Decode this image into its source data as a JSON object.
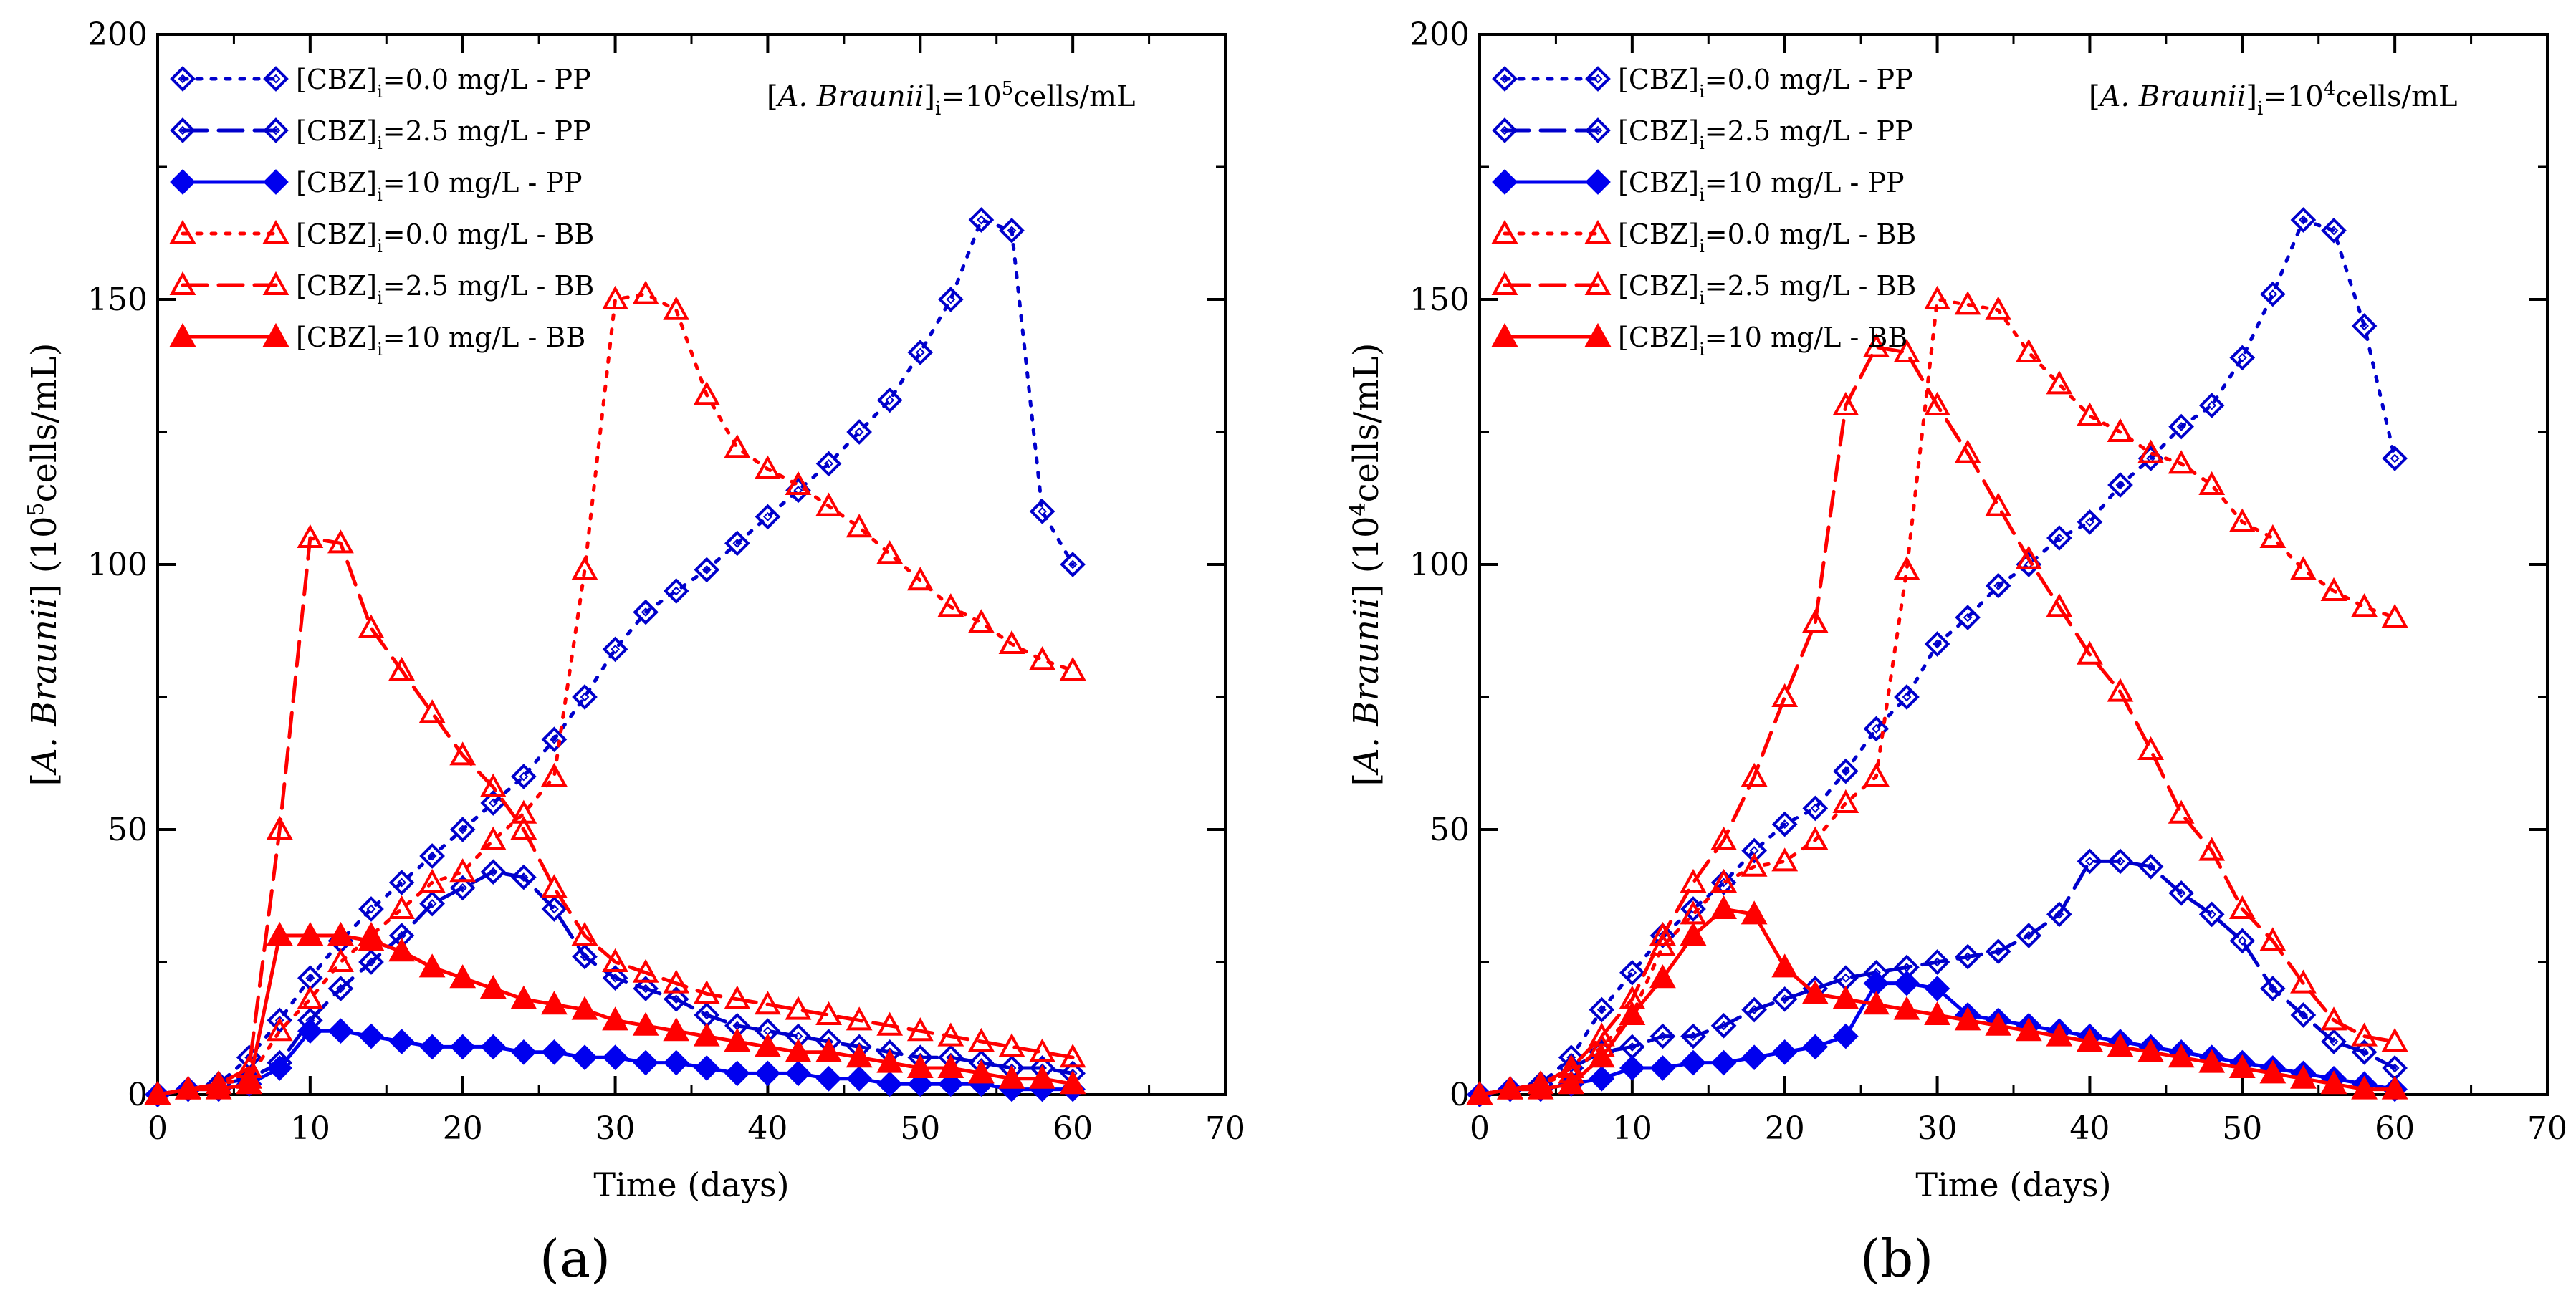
{
  "panel_labels": [
    "(a)",
    "(b)"
  ],
  "chart_data": [
    {
      "type": "line",
      "panel": "(a)",
      "xlabel": "Time (days)",
      "ylabel_prefix": "[",
      "ylabel_italic": "A. Braunii",
      "ylabel_mid": "] (10",
      "ylabel_sup": "5",
      "ylabel_suffix": "cells/mL)",
      "annotation": {
        "prefix": "[",
        "italic": "A. Braunii",
        "mid": "]",
        "sub": "i",
        "eq": "=10",
        "sup": "5",
        "suffix": "cells/mL"
      },
      "xlim": [
        0,
        70
      ],
      "ylim": [
        0,
        200
      ],
      "xticks": [
        0,
        10,
        20,
        30,
        40,
        50,
        60,
        70
      ],
      "yticks": [
        0,
        50,
        100,
        150,
        200
      ],
      "series": [
        {
          "name_pre": "[CBZ]",
          "name_sub": "i",
          "name_post": "=0.0 mg/L - PP",
          "color": "#0000cc",
          "dash": "dot",
          "marker": "diamond",
          "filled": false,
          "x": [
            0,
            2,
            4,
            6,
            8,
            10,
            12,
            14,
            16,
            18,
            20,
            22,
            24,
            26,
            28,
            30,
            32,
            34,
            36,
            38,
            40,
            42,
            44,
            46,
            48,
            50,
            52,
            54,
            56,
            58,
            60
          ],
          "y": [
            0,
            1,
            2,
            7,
            14,
            22,
            29,
            35,
            40,
            45,
            50,
            55,
            60,
            67,
            75,
            84,
            91,
            95,
            99,
            104,
            109,
            114,
            119,
            125,
            131,
            140,
            150,
            165,
            163,
            110,
            100
          ]
        },
        {
          "name_pre": "[CBZ]",
          "name_sub": "i",
          "name_post": "=2.5 mg/L - PP",
          "color": "#0000cc",
          "dash": "dash",
          "marker": "diamond",
          "filled": false,
          "x": [
            0,
            2,
            4,
            6,
            8,
            10,
            12,
            14,
            16,
            18,
            20,
            22,
            24,
            26,
            28,
            30,
            32,
            34,
            36,
            38,
            40,
            42,
            44,
            46,
            48,
            50,
            52,
            54,
            56,
            58,
            60
          ],
          "y": [
            0,
            1,
            2,
            3,
            6,
            14,
            20,
            25,
            30,
            36,
            39,
            42,
            41,
            35,
            26,
            22,
            20,
            18,
            15,
            13,
            12,
            11,
            10,
            9,
            8,
            7,
            7,
            6,
            5,
            5,
            4
          ]
        },
        {
          "name_pre": "[CBZ]",
          "name_sub": "i",
          "name_post": "=10 mg/L - PP",
          "color": "#0000ee",
          "dash": "solid",
          "marker": "diamond",
          "filled": true,
          "x": [
            0,
            2,
            4,
            6,
            8,
            10,
            12,
            14,
            16,
            18,
            20,
            22,
            24,
            26,
            28,
            30,
            32,
            34,
            36,
            38,
            40,
            42,
            44,
            46,
            48,
            50,
            52,
            54,
            56,
            58,
            60
          ],
          "y": [
            0,
            1,
            1,
            2,
            5,
            12,
            12,
            11,
            10,
            9,
            9,
            9,
            8,
            8,
            7,
            7,
            6,
            6,
            5,
            4,
            4,
            4,
            3,
            3,
            2,
            2,
            2,
            2,
            1,
            1,
            1
          ]
        },
        {
          "name_pre": "[CBZ]",
          "name_sub": "i",
          "name_post": "=0.0 mg/L - BB",
          "color": "#ff0000",
          "dash": "dot",
          "marker": "triangle",
          "filled": false,
          "x": [
            0,
            2,
            4,
            6,
            8,
            10,
            12,
            14,
            16,
            18,
            20,
            22,
            24,
            26,
            28,
            30,
            32,
            34,
            36,
            38,
            40,
            42,
            44,
            46,
            48,
            50,
            52,
            54,
            56,
            58,
            60
          ],
          "y": [
            0,
            1,
            2,
            3,
            12,
            18,
            25,
            30,
            35,
            40,
            42,
            48,
            53,
            60,
            99,
            150,
            151,
            148,
            132,
            122,
            118,
            115,
            111,
            107,
            102,
            97,
            92,
            89,
            85,
            82,
            80
          ]
        },
        {
          "name_pre": "[CBZ]",
          "name_sub": "i",
          "name_post": "=2.5 mg/L - BB",
          "color": "#ff0000",
          "dash": "dash",
          "marker": "triangle",
          "filled": false,
          "x": [
            0,
            2,
            4,
            6,
            8,
            10,
            12,
            14,
            16,
            18,
            20,
            22,
            24,
            26,
            28,
            30,
            32,
            34,
            36,
            38,
            40,
            42,
            44,
            46,
            48,
            50,
            52,
            54,
            56,
            58,
            60
          ],
          "y": [
            0,
            1,
            2,
            5,
            50,
            105,
            104,
            88,
            80,
            72,
            64,
            58,
            50,
            39,
            30,
            25,
            23,
            21,
            19,
            18,
            17,
            16,
            15,
            14,
            13,
            12,
            11,
            10,
            9,
            8,
            7
          ]
        },
        {
          "name_pre": "[CBZ]",
          "name_sub": "i",
          "name_post": "=10 mg/L - BB",
          "color": "#ff0000",
          "dash": "solid",
          "marker": "triangle",
          "filled": true,
          "x": [
            0,
            2,
            4,
            6,
            8,
            10,
            12,
            14,
            16,
            18,
            20,
            22,
            24,
            26,
            28,
            30,
            32,
            34,
            36,
            38,
            40,
            42,
            44,
            46,
            48,
            50,
            52,
            54,
            56,
            58,
            60
          ],
          "y": [
            0,
            1,
            1,
            2,
            30,
            30,
            30,
            29,
            27,
            24,
            22,
            20,
            18,
            17,
            16,
            14,
            13,
            12,
            11,
            10,
            9,
            8,
            8,
            7,
            6,
            5,
            5,
            4,
            3,
            3,
            2
          ]
        }
      ]
    },
    {
      "type": "line",
      "panel": "(b)",
      "xlabel": "Time (days)",
      "ylabel_prefix": "[",
      "ylabel_italic": "A. Braunii",
      "ylabel_mid": "] (10",
      "ylabel_sup": "4",
      "ylabel_suffix": "cells/mL)",
      "annotation": {
        "prefix": "[",
        "italic": "A. Braunii",
        "mid": "]",
        "sub": "i",
        "eq": "=10",
        "sup": "4",
        "suffix": "cells/mL"
      },
      "xlim": [
        0,
        70
      ],
      "ylim": [
        0,
        200
      ],
      "xticks": [
        0,
        10,
        20,
        30,
        40,
        50,
        60,
        70
      ],
      "yticks": [
        0,
        50,
        100,
        150,
        200
      ],
      "series": [
        {
          "name_pre": "[CBZ]",
          "name_sub": "i",
          "name_post": "=0.0 mg/L - PP",
          "color": "#0000cc",
          "dash": "dot",
          "marker": "diamond",
          "filled": false,
          "x": [
            0,
            2,
            4,
            6,
            8,
            10,
            12,
            14,
            16,
            18,
            20,
            22,
            24,
            26,
            28,
            30,
            32,
            34,
            36,
            38,
            40,
            42,
            44,
            46,
            48,
            50,
            52,
            54,
            56,
            58,
            60
          ],
          "y": [
            0,
            1,
            2,
            7,
            16,
            23,
            30,
            35,
            40,
            46,
            51,
            54,
            61,
            69,
            75,
            85,
            90,
            96,
            100,
            105,
            108,
            115,
            120,
            126,
            130,
            139,
            151,
            165,
            163,
            145,
            120
          ]
        },
        {
          "name_pre": "[CBZ]",
          "name_sub": "i",
          "name_post": "=2.5 mg/L - PP",
          "color": "#0000cc",
          "dash": "dash",
          "marker": "diamond",
          "filled": false,
          "x": [
            0,
            2,
            4,
            6,
            8,
            10,
            12,
            14,
            16,
            18,
            20,
            22,
            24,
            26,
            28,
            30,
            32,
            34,
            36,
            38,
            40,
            42,
            44,
            46,
            48,
            50,
            52,
            54,
            56,
            58,
            60
          ],
          "y": [
            0,
            1,
            2,
            5,
            8,
            9,
            11,
            11,
            13,
            16,
            18,
            20,
            22,
            23,
            24,
            25,
            26,
            27,
            30,
            34,
            44,
            44,
            43,
            38,
            34,
            29,
            20,
            15,
            10,
            8,
            5
          ]
        },
        {
          "name_pre": "[CBZ]",
          "name_sub": "i",
          "name_post": "=10 mg/L - PP",
          "color": "#0000ee",
          "dash": "solid",
          "marker": "diamond",
          "filled": true,
          "x": [
            0,
            2,
            4,
            6,
            8,
            10,
            12,
            14,
            16,
            18,
            20,
            22,
            24,
            26,
            28,
            30,
            32,
            34,
            36,
            38,
            40,
            42,
            44,
            46,
            48,
            50,
            52,
            54,
            56,
            58,
            60
          ],
          "y": [
            0,
            1,
            1,
            2,
            3,
            5,
            5,
            6,
            6,
            7,
            8,
            9,
            11,
            21,
            21,
            20,
            15,
            14,
            13,
            12,
            11,
            10,
            9,
            8,
            7,
            6,
            5,
            4,
            3,
            2,
            1
          ]
        },
        {
          "name_pre": "[CBZ]",
          "name_sub": "i",
          "name_post": "=0.0 mg/L - BB",
          "color": "#ff0000",
          "dash": "dot",
          "marker": "triangle",
          "filled": false,
          "x": [
            0,
            2,
            4,
            6,
            8,
            10,
            12,
            14,
            16,
            18,
            20,
            22,
            24,
            26,
            28,
            30,
            32,
            34,
            36,
            38,
            40,
            42,
            44,
            46,
            48,
            50,
            52,
            54,
            56,
            58,
            60
          ],
          "y": [
            0,
            1,
            2,
            4,
            9,
            15,
            28,
            34,
            40,
            43,
            44,
            48,
            55,
            60,
            99,
            150,
            149,
            148,
            140,
            134,
            128,
            125,
            121,
            119,
            115,
            108,
            105,
            99,
            95,
            92,
            90
          ]
        },
        {
          "name_pre": "[CBZ]",
          "name_sub": "i",
          "name_post": "=2.5 mg/L - BB",
          "color": "#ff0000",
          "dash": "dash",
          "marker": "triangle",
          "filled": false,
          "x": [
            0,
            2,
            4,
            6,
            8,
            10,
            12,
            14,
            16,
            18,
            20,
            22,
            24,
            26,
            28,
            30,
            32,
            34,
            36,
            38,
            40,
            42,
            44,
            46,
            48,
            50,
            52,
            54,
            56,
            58,
            60
          ],
          "y": [
            0,
            1,
            2,
            5,
            11,
            18,
            30,
            40,
            48,
            60,
            75,
            89,
            130,
            141,
            140,
            130,
            121,
            111,
            101,
            92,
            83,
            76,
            65,
            53,
            46,
            35,
            29,
            21,
            14,
            11,
            10
          ]
        },
        {
          "name_pre": "[CBZ]",
          "name_sub": "i",
          "name_post": "=10 mg/L - BB",
          "color": "#ff0000",
          "dash": "solid",
          "marker": "triangle",
          "filled": true,
          "x": [
            0,
            2,
            4,
            6,
            8,
            10,
            12,
            14,
            16,
            18,
            20,
            22,
            24,
            26,
            28,
            30,
            32,
            34,
            36,
            38,
            40,
            42,
            44,
            46,
            48,
            50,
            52,
            54,
            56,
            58,
            60
          ],
          "y": [
            0,
            1,
            1,
            2,
            7,
            15,
            22,
            30,
            35,
            34,
            24,
            19,
            18,
            17,
            16,
            15,
            14,
            13,
            12,
            11,
            10,
            9,
            8,
            7,
            6,
            5,
            4,
            3,
            2,
            1,
            1
          ]
        }
      ]
    }
  ]
}
